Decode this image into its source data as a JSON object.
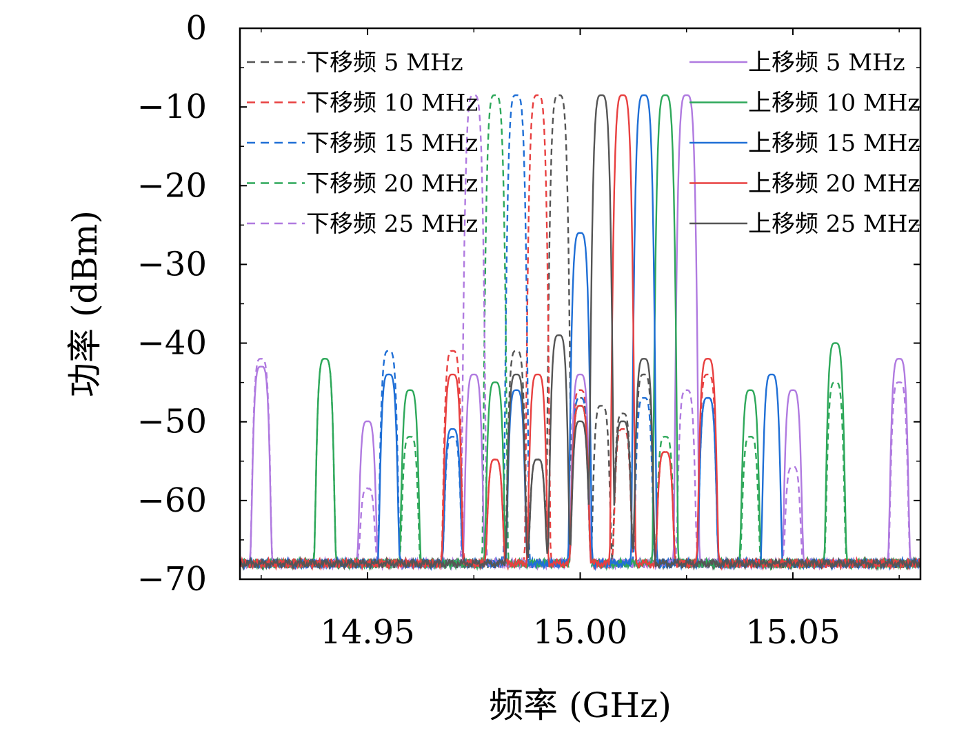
{
  "chart_data": {
    "type": "line",
    "xlabel": "频率 (GHz)",
    "ylabel": "功率 (dBm)",
    "xlim": [
      14.92,
      15.08
    ],
    "ylim": [
      -70,
      0
    ],
    "xticks": [
      14.95,
      15.0,
      15.05
    ],
    "xtick_labels": [
      "14.95",
      "15.00",
      "15.05"
    ],
    "yticks": [
      0,
      -10,
      -20,
      -30,
      -40,
      -50,
      -60,
      -70
    ],
    "ytick_labels": [
      "0",
      "−10",
      "−20",
      "−30",
      "−40",
      "−50",
      "−60",
      "−70"
    ],
    "noise_floor": -68,
    "grid": false,
    "legend_left": "top-left",
    "legend_right": "top-right",
    "peak_width_ghz": 0.0013,
    "series": [
      {
        "name": "下移频 5 MHz",
        "style": "dashed",
        "color": "#555555",
        "peaks": [
          [
            14.995,
            -8.5
          ],
          [
            14.99,
            -55
          ],
          [
            14.985,
            -41
          ],
          [
            15.0,
            -47
          ],
          [
            15.005,
            -48
          ],
          [
            15.01,
            -49
          ],
          [
            15.015,
            -44
          ]
        ]
      },
      {
        "name": "下移频 10 MHz",
        "style": "dashed",
        "color": "#e84040",
        "peaks": [
          [
            14.99,
            -8.5
          ],
          [
            14.98,
            -55
          ],
          [
            14.97,
            -41
          ],
          [
            15.0,
            -46
          ],
          [
            15.01,
            -51
          ],
          [
            15.02,
            -54
          ],
          [
            15.03,
            -44
          ]
        ]
      },
      {
        "name": "下移频 15 MHz",
        "style": "dashed",
        "color": "#1f6fd6",
        "peaks": [
          [
            14.985,
            -8.5
          ],
          [
            14.97,
            -52
          ],
          [
            14.955,
            -41
          ],
          [
            15.0,
            -47
          ],
          [
            15.015,
            -47
          ],
          [
            15.03,
            -47
          ]
        ]
      },
      {
        "name": "下移频 20 MHz",
        "style": "dashed",
        "color": "#2ea85a",
        "peaks": [
          [
            14.98,
            -8.5
          ],
          [
            14.96,
            -52
          ],
          [
            14.94,
            -42
          ],
          [
            15.0,
            -48
          ],
          [
            15.02,
            -52
          ],
          [
            15.04,
            -52
          ],
          [
            15.06,
            -45
          ]
        ]
      },
      {
        "name": "下移频 25 MHz",
        "style": "dashed",
        "color": "#b07ae0",
        "peaks": [
          [
            14.975,
            -8.5
          ],
          [
            14.95,
            -59
          ],
          [
            14.925,
            -42
          ],
          [
            15.0,
            -50
          ],
          [
            15.025,
            -46
          ],
          [
            15.05,
            -56
          ],
          [
            15.075,
            -45
          ]
        ]
      },
      {
        "name": "上移频 5 MHz",
        "style": "solid",
        "color": "#b07ae0",
        "peaks": [
          [
            15.025,
            -8.5
          ],
          [
            15.05,
            -46
          ],
          [
            15.075,
            -42
          ],
          [
            15.0,
            -44
          ],
          [
            14.975,
            -44
          ],
          [
            14.95,
            -50
          ],
          [
            14.925,
            -43
          ]
        ]
      },
      {
        "name": "上移频 10 MHz",
        "style": "solid",
        "color": "#2ea85a",
        "peaks": [
          [
            15.02,
            -8.5
          ],
          [
            15.04,
            -46
          ],
          [
            15.06,
            -40
          ],
          [
            15.0,
            -48
          ],
          [
            14.98,
            -45
          ],
          [
            14.96,
            -46
          ],
          [
            14.94,
            -42
          ]
        ]
      },
      {
        "name": "上移频 15 MHz",
        "style": "solid",
        "color": "#1f6fd6",
        "peaks": [
          [
            15.015,
            -8.5
          ],
          [
            15.03,
            -47
          ],
          [
            15.045,
            -44
          ],
          [
            15.0,
            -26
          ],
          [
            14.985,
            -46
          ],
          [
            14.97,
            -51
          ],
          [
            14.955,
            -44
          ]
        ]
      },
      {
        "name": "上移频 20 MHz",
        "style": "solid",
        "color": "#e84040",
        "peaks": [
          [
            15.01,
            -8.5
          ],
          [
            15.02,
            -54
          ],
          [
            15.03,
            -42
          ],
          [
            15.0,
            -48
          ],
          [
            14.99,
            -44
          ],
          [
            14.98,
            -55
          ],
          [
            14.97,
            -44
          ]
        ]
      },
      {
        "name": "上移频 25 MHz",
        "style": "solid",
        "color": "#555555",
        "peaks": [
          [
            15.005,
            -8.5
          ],
          [
            15.01,
            -50
          ],
          [
            15.015,
            -42
          ],
          [
            15.0,
            -50
          ],
          [
            14.995,
            -39
          ],
          [
            14.99,
            -55
          ],
          [
            14.985,
            -44
          ]
        ]
      }
    ]
  }
}
